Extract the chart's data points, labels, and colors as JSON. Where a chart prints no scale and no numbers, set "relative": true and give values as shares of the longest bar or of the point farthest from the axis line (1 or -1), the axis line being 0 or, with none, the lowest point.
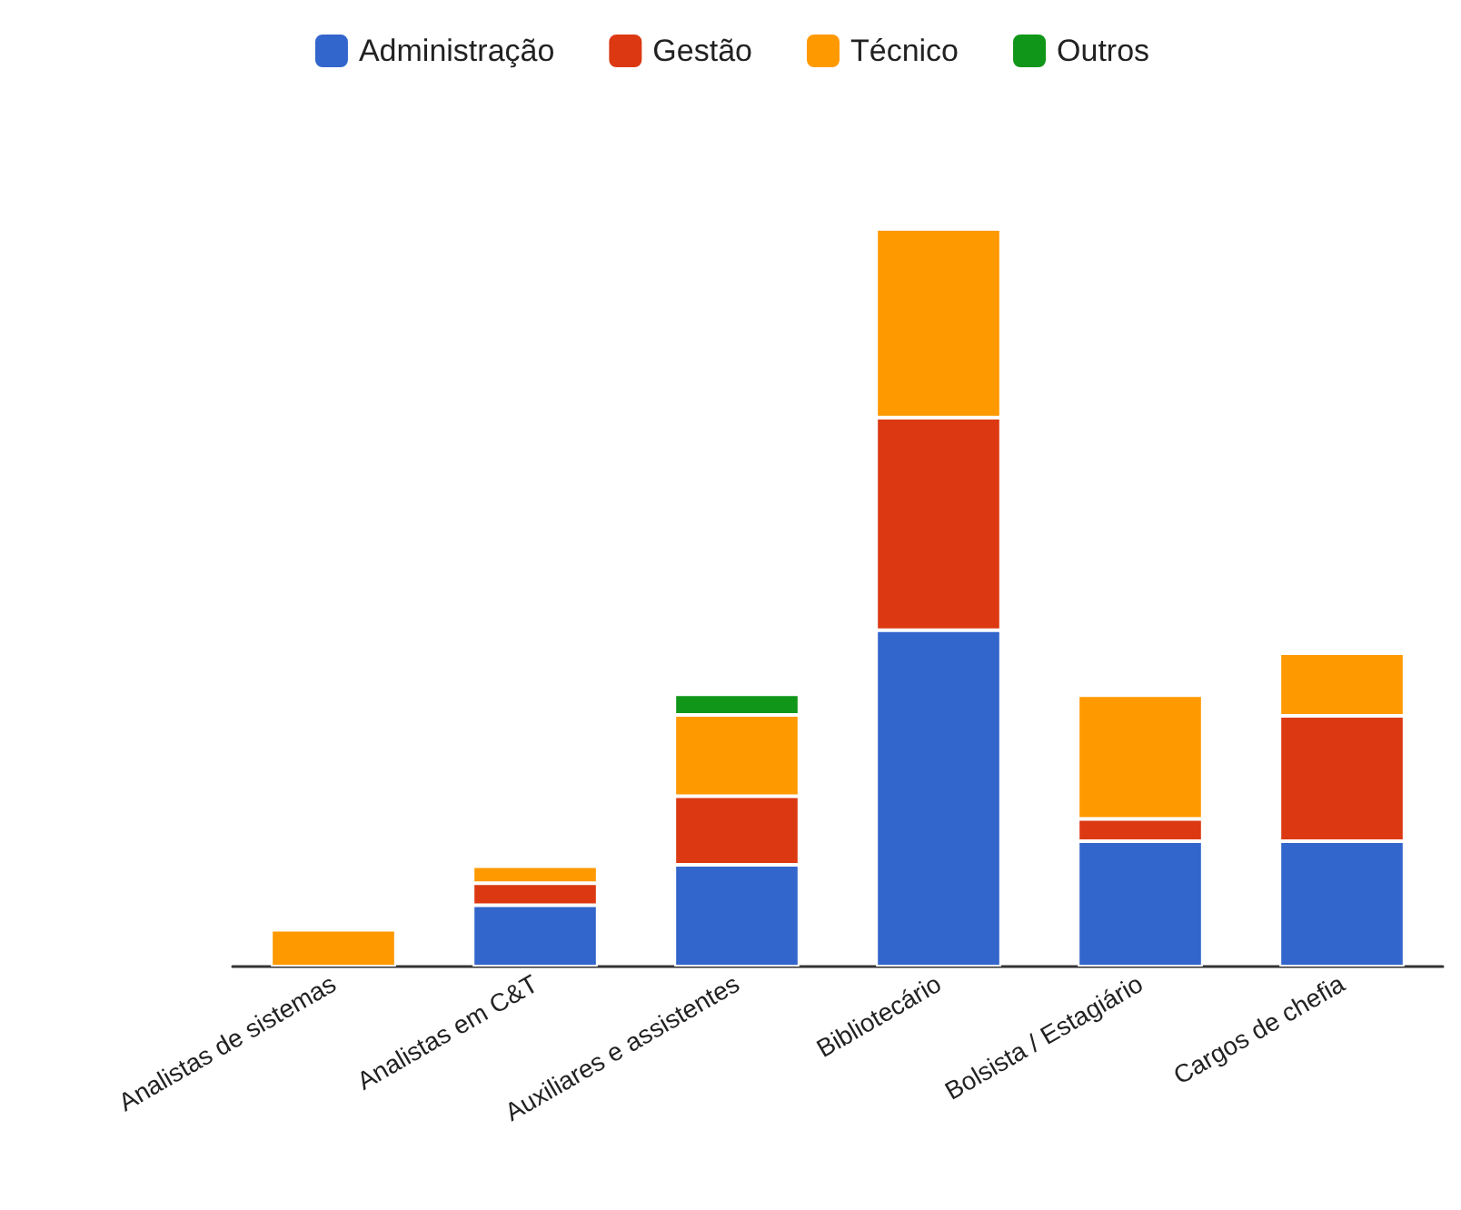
{
  "chart_data": {
    "type": "bar",
    "stacked": true,
    "relative": true,
    "legend": "top",
    "categories": [
      "Analistas de sistemas",
      "Analistas em C&T",
      "Auxiliares e assistentes",
      "Bibliotecário",
      "Bolsista / Estagiário",
      "Cargos de chefia"
    ],
    "series": [
      {
        "name": "Administração",
        "color": "#3366cc",
        "values": [
          null,
          0.083,
          0.138,
          0.456,
          0.17,
          0.17
        ]
      },
      {
        "name": "Gestão",
        "color": "#dc3912",
        "values": [
          null,
          0.03,
          0.093,
          0.288,
          0.03,
          0.17
        ]
      },
      {
        "name": "Técnico",
        "color": "#ff9900",
        "values": [
          0.05,
          0.023,
          0.11,
          0.256,
          0.168,
          0.085
        ]
      },
      {
        "name": "Outros",
        "color": "#109618",
        "values": [
          null,
          null,
          0.028,
          null,
          null,
          null
        ]
      }
    ]
  }
}
